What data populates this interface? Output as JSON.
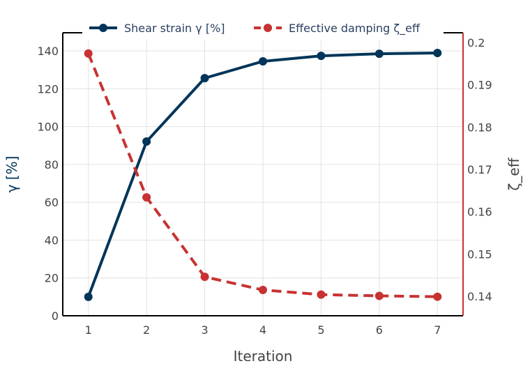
{
  "chart_data": {
    "type": "line",
    "xlabel": "Iteration",
    "ylabel": "γ [%]",
    "y2label": "ζ_eff",
    "x": [
      1,
      2,
      3,
      4,
      5,
      6,
      7
    ],
    "xlim": [
      0.56,
      7.44
    ],
    "ylim": [
      0,
      149.6
    ],
    "y2lim": [
      0.1354,
      0.2023
    ],
    "xticks": [
      1,
      2,
      3,
      4,
      5,
      6,
      7
    ],
    "yticks": [
      0,
      20,
      40,
      60,
      80,
      100,
      120,
      140
    ],
    "y2ticks": [
      "0.14",
      "0.15",
      "0.16",
      "0.17",
      "0.18",
      "0.19",
      "0.2"
    ],
    "grid": true,
    "legend_position": "top",
    "series": [
      {
        "name": "Shear strain γ [%]",
        "axis": "left",
        "color": "#003559",
        "dash": "solid",
        "values": [
          10,
          92.1,
          125.6,
          134.5,
          137.4,
          138.5,
          138.9
        ]
      },
      {
        "name": "Effective damping ζ_eff",
        "axis": "right",
        "color": "#c83232",
        "dash": "dash",
        "values": [
          0.1974,
          0.1634,
          0.1446,
          0.1415,
          0.1404,
          0.1401,
          0.1399
        ]
      }
    ]
  }
}
